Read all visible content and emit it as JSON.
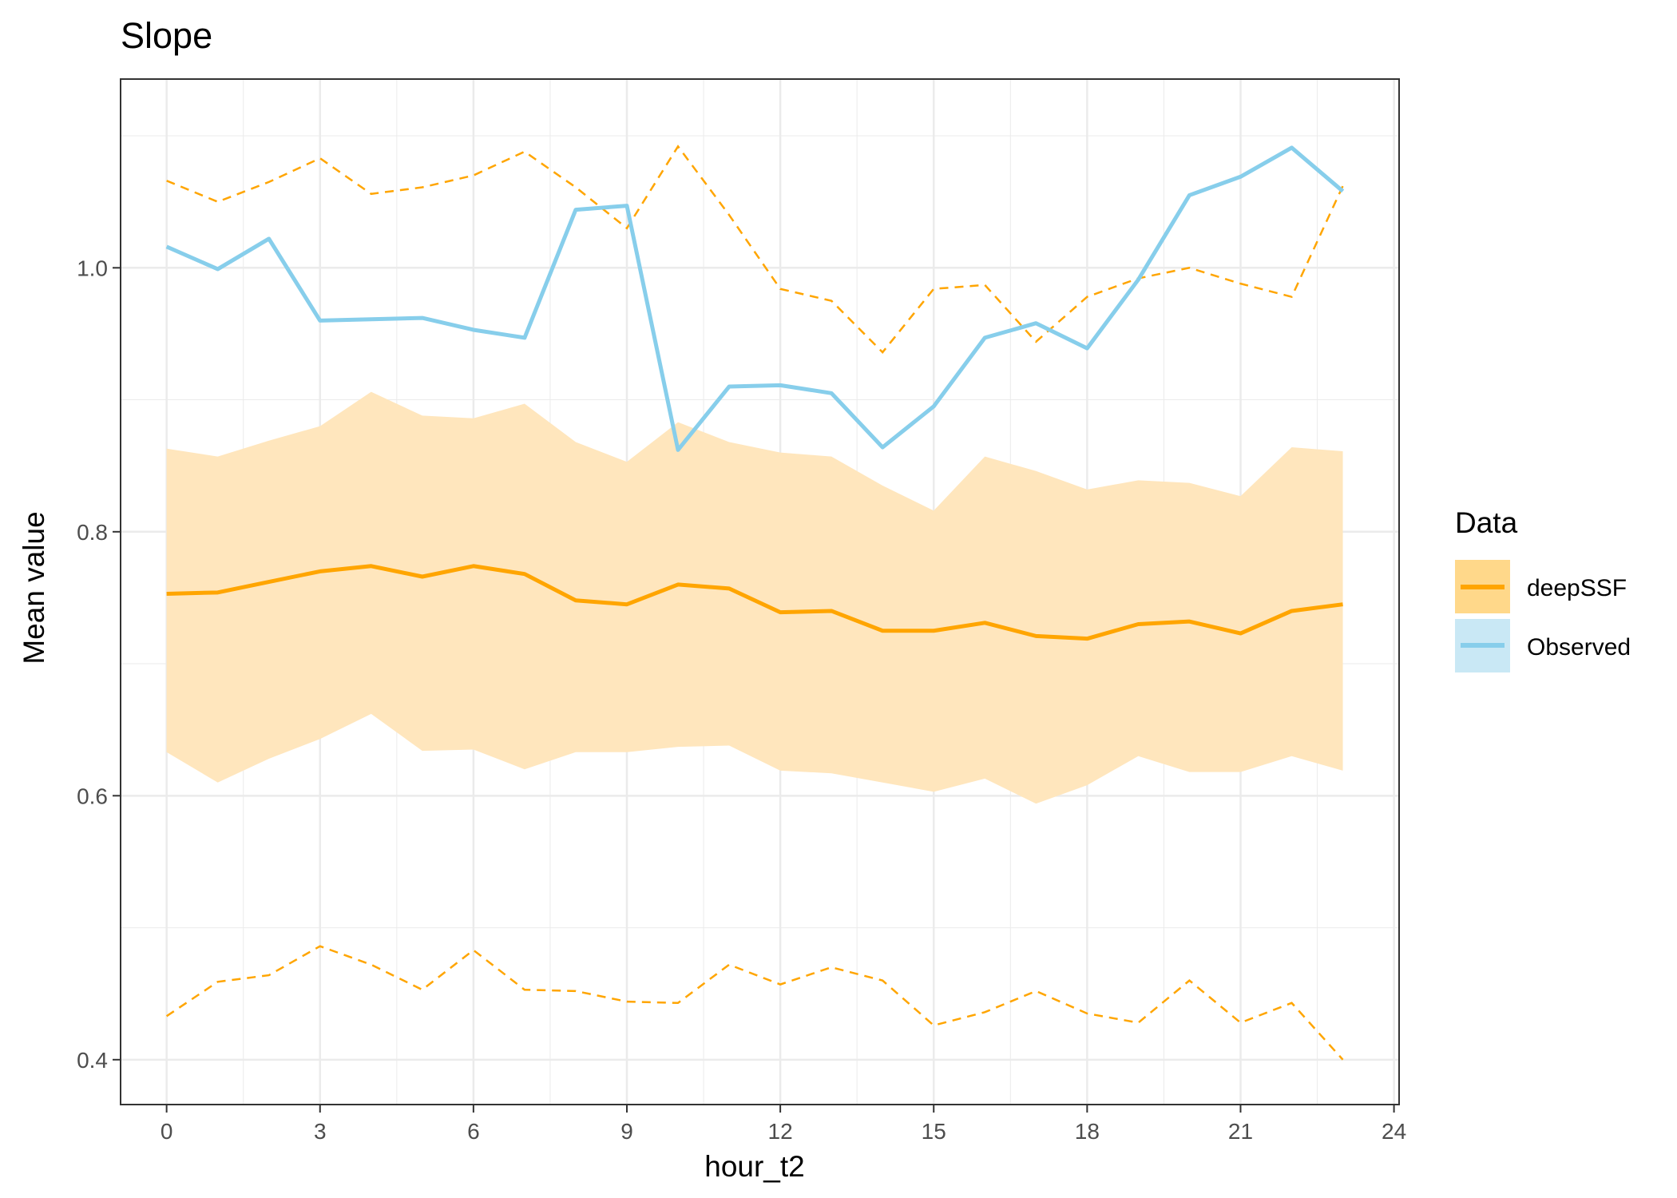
{
  "chart_data": {
    "type": "line",
    "title": "Slope",
    "xlabel": "hour_t2",
    "ylabel": "Mean value",
    "xlim": [
      -0.9,
      24.1
    ],
    "ylim": [
      0.366,
      1.143
    ],
    "x_ticks": [
      0,
      3,
      6,
      9,
      12,
      15,
      18,
      21,
      24
    ],
    "y_ticks": [
      0.4,
      0.6,
      0.8,
      1.0
    ],
    "y_tick_labels": [
      "0.4",
      "0.6",
      "0.8",
      "1.0"
    ],
    "grid": true,
    "legend": {
      "title": "Data",
      "position": "right",
      "entries": [
        "deepSSF",
        "Observed"
      ]
    },
    "colors": {
      "deepSSF": "#FFA500",
      "deepSSF_band": "#FFE6BD",
      "deepSSF_legend_band": "#FFD88A",
      "Observed": "#87CEEB",
      "Observed_legend_band": "#C9E8F5",
      "grid": "#EBEBEB",
      "axis_text": "#4D4D4D"
    },
    "x": [
      0,
      1,
      2,
      3,
      4,
      5,
      6,
      7,
      8,
      9,
      10,
      11,
      12,
      13,
      14,
      15,
      16,
      17,
      18,
      19,
      20,
      21,
      22,
      23
    ],
    "series": [
      {
        "name": "deepSSF",
        "style": "solid",
        "values": [
          0.753,
          0.754,
          0.762,
          0.77,
          0.774,
          0.766,
          0.774,
          0.768,
          0.748,
          0.745,
          0.76,
          0.757,
          0.739,
          0.74,
          0.725,
          0.725,
          0.731,
          0.721,
          0.719,
          0.73,
          0.732,
          0.723,
          0.74,
          0.745
        ],
        "band_lower": [
          0.633,
          0.61,
          0.628,
          0.643,
          0.662,
          0.634,
          0.635,
          0.62,
          0.633,
          0.633,
          0.637,
          0.638,
          0.619,
          0.617,
          0.61,
          0.603,
          0.613,
          0.594,
          0.608,
          0.63,
          0.618,
          0.618,
          0.63,
          0.619
        ],
        "band_upper": [
          0.863,
          0.857,
          0.869,
          0.88,
          0.906,
          0.888,
          0.886,
          0.897,
          0.868,
          0.853,
          0.883,
          0.868,
          0.86,
          0.857,
          0.835,
          0.816,
          0.857,
          0.846,
          0.832,
          0.839,
          0.837,
          0.827,
          0.864,
          0.861
        ],
        "dashed_upper": [
          1.066,
          1.05,
          1.065,
          1.083,
          1.056,
          1.061,
          1.07,
          1.088,
          1.061,
          1.03,
          1.092,
          1.04,
          0.984,
          0.975,
          0.936,
          0.984,
          0.987,
          0.944,
          0.978,
          0.992,
          1.0,
          0.988,
          0.978,
          1.062
        ],
        "dashed_lower": [
          0.433,
          0.459,
          0.464,
          0.486,
          0.472,
          0.453,
          0.483,
          0.453,
          0.452,
          0.444,
          0.443,
          0.472,
          0.457,
          0.47,
          0.46,
          0.426,
          0.436,
          0.452,
          0.435,
          0.428,
          0.46,
          0.428,
          0.443,
          0.4
        ]
      },
      {
        "name": "Observed",
        "style": "solid",
        "values": [
          1.016,
          0.999,
          1.022,
          0.96,
          0.961,
          0.962,
          0.953,
          0.947,
          1.044,
          1.047,
          0.862,
          0.91,
          0.911,
          0.905,
          0.864,
          0.895,
          0.947,
          0.958,
          0.939,
          0.991,
          1.055,
          1.069,
          1.091,
          1.058
        ]
      }
    ]
  }
}
